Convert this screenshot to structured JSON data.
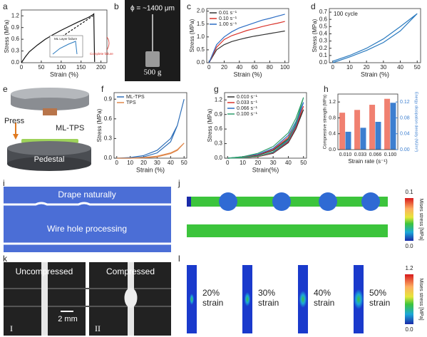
{
  "figure": {
    "panel_labels": [
      "a",
      "b",
      "c",
      "d",
      "e",
      "f",
      "g",
      "h",
      "i",
      "j",
      "k",
      "l"
    ],
    "b": {
      "diameter": "ϕ = ~1400 μm",
      "weight": "500 g"
    },
    "e": {
      "press": "Press",
      "sample": "ML-TPS",
      "pedestal": "Pedestal"
    },
    "i": {
      "top": "Drape naturally",
      "bottom": "Wire hole processing"
    },
    "j": {
      "colorbar_max": "0.1",
      "colorbar_min": "0.0",
      "colorbar_label": "Mises stress [MPa]"
    },
    "k": {
      "left": "Uncompressed",
      "right": "Compressed",
      "scale": "2 mm",
      "left_id": "I",
      "right_id": "II"
    },
    "l": {
      "labels": [
        [
          "20%",
          "strain"
        ],
        [
          "30%",
          "strain"
        ],
        [
          "40%",
          "strain"
        ],
        [
          "50%",
          "strain"
        ]
      ],
      "colorbar_max": "1.2",
      "colorbar_min": "0.0",
      "colorbar_label": "Mises stress [MPa]"
    }
  },
  "chart_data": [
    {
      "type": "line",
      "xlabel": "Strain (%)",
      "ylabel": "Stress (MPa)",
      "xlim": [
        0,
        215
      ],
      "ylim": [
        0,
        1.35
      ],
      "xticks": [
        0,
        50,
        100,
        150,
        200
      ],
      "yticks": [
        {
          "value": 0,
          "label": "0.0"
        },
        {
          "value": 0.3,
          "label": "0.3"
        },
        {
          "value": 0.6,
          "label": "0.6"
        },
        {
          "value": 0.9,
          "label": "0.9"
        },
        {
          "value": 1.2,
          "label": "1.2"
        }
      ],
      "series": [
        {
          "color": "#111111",
          "x": [
            0,
            10,
            20,
            40,
            60,
            80,
            100,
            120,
            140,
            160,
            170,
            175,
            180,
            182,
            183,
            184
          ],
          "values": [
            0,
            0.15,
            0.28,
            0.45,
            0.6,
            0.72,
            0.83,
            0.93,
            1.03,
            1.12,
            1.17,
            1.2,
            1.23,
            1.25,
            0.6,
            0.02
          ]
        },
        {
          "color": "#111111",
          "dashed": true,
          "x": [
            95,
            180
          ],
          "values": [
            0.62,
            1.2
          ]
        }
      ],
      "annotations": [
        "ML Layer failure",
        "Complete failure"
      ]
    },
    {
      "type": "line",
      "xlabel": "Strain (%)",
      "ylabel": "Stress (MPa)",
      "xlim": [
        -3,
        105
      ],
      "ylim": [
        0,
        2.1
      ],
      "xticks": [
        0,
        20,
        40,
        60,
        80,
        100
      ],
      "yticks": [
        {
          "value": 0,
          "label": "0.0"
        },
        {
          "value": 0.5,
          "label": "0.5"
        },
        {
          "value": 1,
          "label": "1.0"
        },
        {
          "value": 1.5,
          "label": "1.5"
        },
        {
          "value": 2,
          "label": "2.0"
        }
      ],
      "series": [
        {
          "name": "0.01 s⁻¹",
          "color": "#333333",
          "x": [
            0,
            10,
            20,
            30,
            40,
            50,
            60,
            70,
            80,
            90,
            100
          ],
          "values": [
            0,
            0.5,
            0.7,
            0.82,
            0.9,
            0.97,
            1.03,
            1.08,
            1.13,
            1.18,
            1.23
          ]
        },
        {
          "name": "0.10 s⁻¹",
          "color": "#d9332b",
          "x": [
            0,
            10,
            20,
            30,
            40,
            50,
            60,
            70,
            80,
            90,
            100
          ],
          "values": [
            0,
            0.6,
            0.9,
            1.05,
            1.15,
            1.25,
            1.32,
            1.4,
            1.47,
            1.53,
            1.6
          ]
        },
        {
          "name": "1.00 s⁻¹",
          "color": "#2b6cc4",
          "x": [
            0,
            10,
            20,
            30,
            40,
            50,
            60,
            70,
            80,
            90,
            100
          ],
          "values": [
            0,
            0.7,
            1.0,
            1.2,
            1.35,
            1.45,
            1.55,
            1.65,
            1.72,
            1.8,
            1.88
          ]
        }
      ]
    },
    {
      "type": "line",
      "xlabel": "Strain (%)",
      "ylabel": "Stress (MPa)",
      "xlim": [
        -2,
        52
      ],
      "ylim": [
        0,
        0.75
      ],
      "xticks": [
        0,
        10,
        20,
        30,
        40,
        50
      ],
      "yticks": [
        {
          "value": 0,
          "label": "0.0"
        },
        {
          "value": 0.1,
          "label": "0.1"
        },
        {
          "value": 0.2,
          "label": "0.2"
        },
        {
          "value": 0.3,
          "label": "0.3"
        },
        {
          "value": 0.4,
          "label": "0.4"
        },
        {
          "value": 0.5,
          "label": "0.5"
        },
        {
          "value": 0.6,
          "label": "0.6"
        },
        {
          "value": 0.7,
          "label": "0.7"
        }
      ],
      "series": [
        {
          "color": "#2a7abf",
          "x": [
            0,
            10,
            20,
            30,
            40,
            50,
            40,
            30,
            20,
            10,
            0
          ],
          "values": [
            0,
            0.08,
            0.17,
            0.28,
            0.44,
            0.68,
            0.5,
            0.33,
            0.2,
            0.1,
            0.02
          ]
        }
      ],
      "annotations": [
        "100 cycle"
      ]
    },
    {
      "type": "line",
      "xlabel": "Strain (%)",
      "ylabel": "Stress (MPa)",
      "xlim": [
        -2,
        52
      ],
      "ylim": [
        0,
        1.0
      ],
      "xticks": [
        0,
        10,
        20,
        30,
        40,
        50
      ],
      "yticks": [
        {
          "value": 0,
          "label": "0.0"
        },
        {
          "value": 0.3,
          "label": "0.3"
        },
        {
          "value": 0.6,
          "label": "0.6"
        },
        {
          "value": 0.9,
          "label": "0.9"
        }
      ],
      "series": [
        {
          "name": "ML-TPS",
          "color": "#2f6fb8",
          "x": [
            0,
            10,
            20,
            30,
            40,
            45,
            50,
            45,
            40,
            30,
            20,
            10,
            0
          ],
          "values": [
            0,
            0.01,
            0.04,
            0.12,
            0.3,
            0.5,
            0.9,
            0.5,
            0.25,
            0.08,
            0.02,
            0,
            0
          ]
        },
        {
          "name": "TPS",
          "color": "#e0874a",
          "x": [
            0,
            10,
            20,
            30,
            40,
            45,
            50,
            45,
            40,
            30,
            20,
            10,
            0
          ],
          "values": [
            0,
            0,
            0.01,
            0.03,
            0.08,
            0.13,
            0.23,
            0.12,
            0.07,
            0.02,
            0.005,
            0,
            0
          ]
        }
      ]
    },
    {
      "type": "line",
      "xlabel": "Strain(%)",
      "ylabel": "Stress (MPa)",
      "xlim": [
        -2,
        52
      ],
      "ylim": [
        0,
        1.35
      ],
      "xticks": [
        0,
        10,
        20,
        30,
        40,
        50
      ],
      "yticks": [
        {
          "value": 0,
          "label": "0.0"
        },
        {
          "value": 0.3,
          "label": "0.3"
        },
        {
          "value": 0.6,
          "label": "0.6"
        },
        {
          "value": 0.9,
          "label": "0.9"
        },
        {
          "value": 1.2,
          "label": "1.2"
        }
      ],
      "series": [
        {
          "name": "0.010 s⁻¹",
          "color": "#333333",
          "x": [
            0,
            10,
            20,
            30,
            40,
            45,
            50,
            45,
            40,
            30,
            20,
            10,
            0
          ],
          "values": [
            0,
            0.02,
            0.06,
            0.16,
            0.4,
            0.65,
            1.0,
            0.6,
            0.32,
            0.1,
            0.03,
            0.01,
            0
          ]
        },
        {
          "name": "0.033 s⁻¹",
          "color": "#d9332b",
          "x": [
            0,
            10,
            20,
            30,
            40,
            45,
            50,
            45,
            40,
            30,
            20,
            10,
            0
          ],
          "values": [
            0,
            0.02,
            0.07,
            0.18,
            0.43,
            0.7,
            1.07,
            0.64,
            0.34,
            0.11,
            0.03,
            0.01,
            0
          ]
        },
        {
          "name": "0.066 s⁻¹",
          "color": "#2b6cc4",
          "x": [
            0,
            10,
            20,
            30,
            40,
            45,
            50,
            45,
            40,
            30,
            20,
            10,
            0
          ],
          "values": [
            0,
            0.03,
            0.08,
            0.2,
            0.47,
            0.75,
            1.15,
            0.68,
            0.36,
            0.12,
            0.04,
            0.01,
            0
          ]
        },
        {
          "name": "0.100 s⁻¹",
          "color": "#2e9e6a",
          "x": [
            0,
            10,
            20,
            30,
            40,
            45,
            50,
            45,
            40,
            30,
            20,
            10,
            0
          ],
          "values": [
            0,
            0.03,
            0.1,
            0.24,
            0.52,
            0.82,
            1.25,
            0.72,
            0.38,
            0.13,
            0.04,
            0.01,
            0
          ]
        }
      ]
    },
    {
      "type": "bar",
      "xlabel": "Strain rate (s⁻¹)",
      "ylabel": "Compressive strength (MPa)",
      "y2label": "Energy dissipation density (MJ/m³)",
      "categories": [
        "0.010",
        "0.033",
        "0.066",
        "0.100"
      ],
      "ylim": [
        0,
        1.4
      ],
      "y2lim": [
        0,
        0.14
      ],
      "yticks": [
        {
          "value": 0,
          "label": "0.0"
        },
        {
          "value": 0.4,
          "label": "0.4"
        },
        {
          "value": 0.8,
          "label": "0.8"
        },
        {
          "value": 1.2,
          "label": "1.2"
        }
      ],
      "y2ticks": [
        {
          "value": 0,
          "label": "0.00"
        },
        {
          "value": 0.04,
          "label": "0.04"
        },
        {
          "value": 0.08,
          "label": "0.08"
        },
        {
          "value": 0.12,
          "label": "0.12"
        }
      ],
      "series": [
        {
          "name": "Compressive strength",
          "color": "#f08070",
          "values": [
            0.93,
            1.0,
            1.13,
            1.28
          ]
        },
        {
          "name": "Energy dissipation density",
          "color": "#3c7fd0",
          "axis": "y2",
          "values": [
            0.045,
            0.055,
            0.07,
            0.118
          ]
        }
      ]
    }
  ]
}
